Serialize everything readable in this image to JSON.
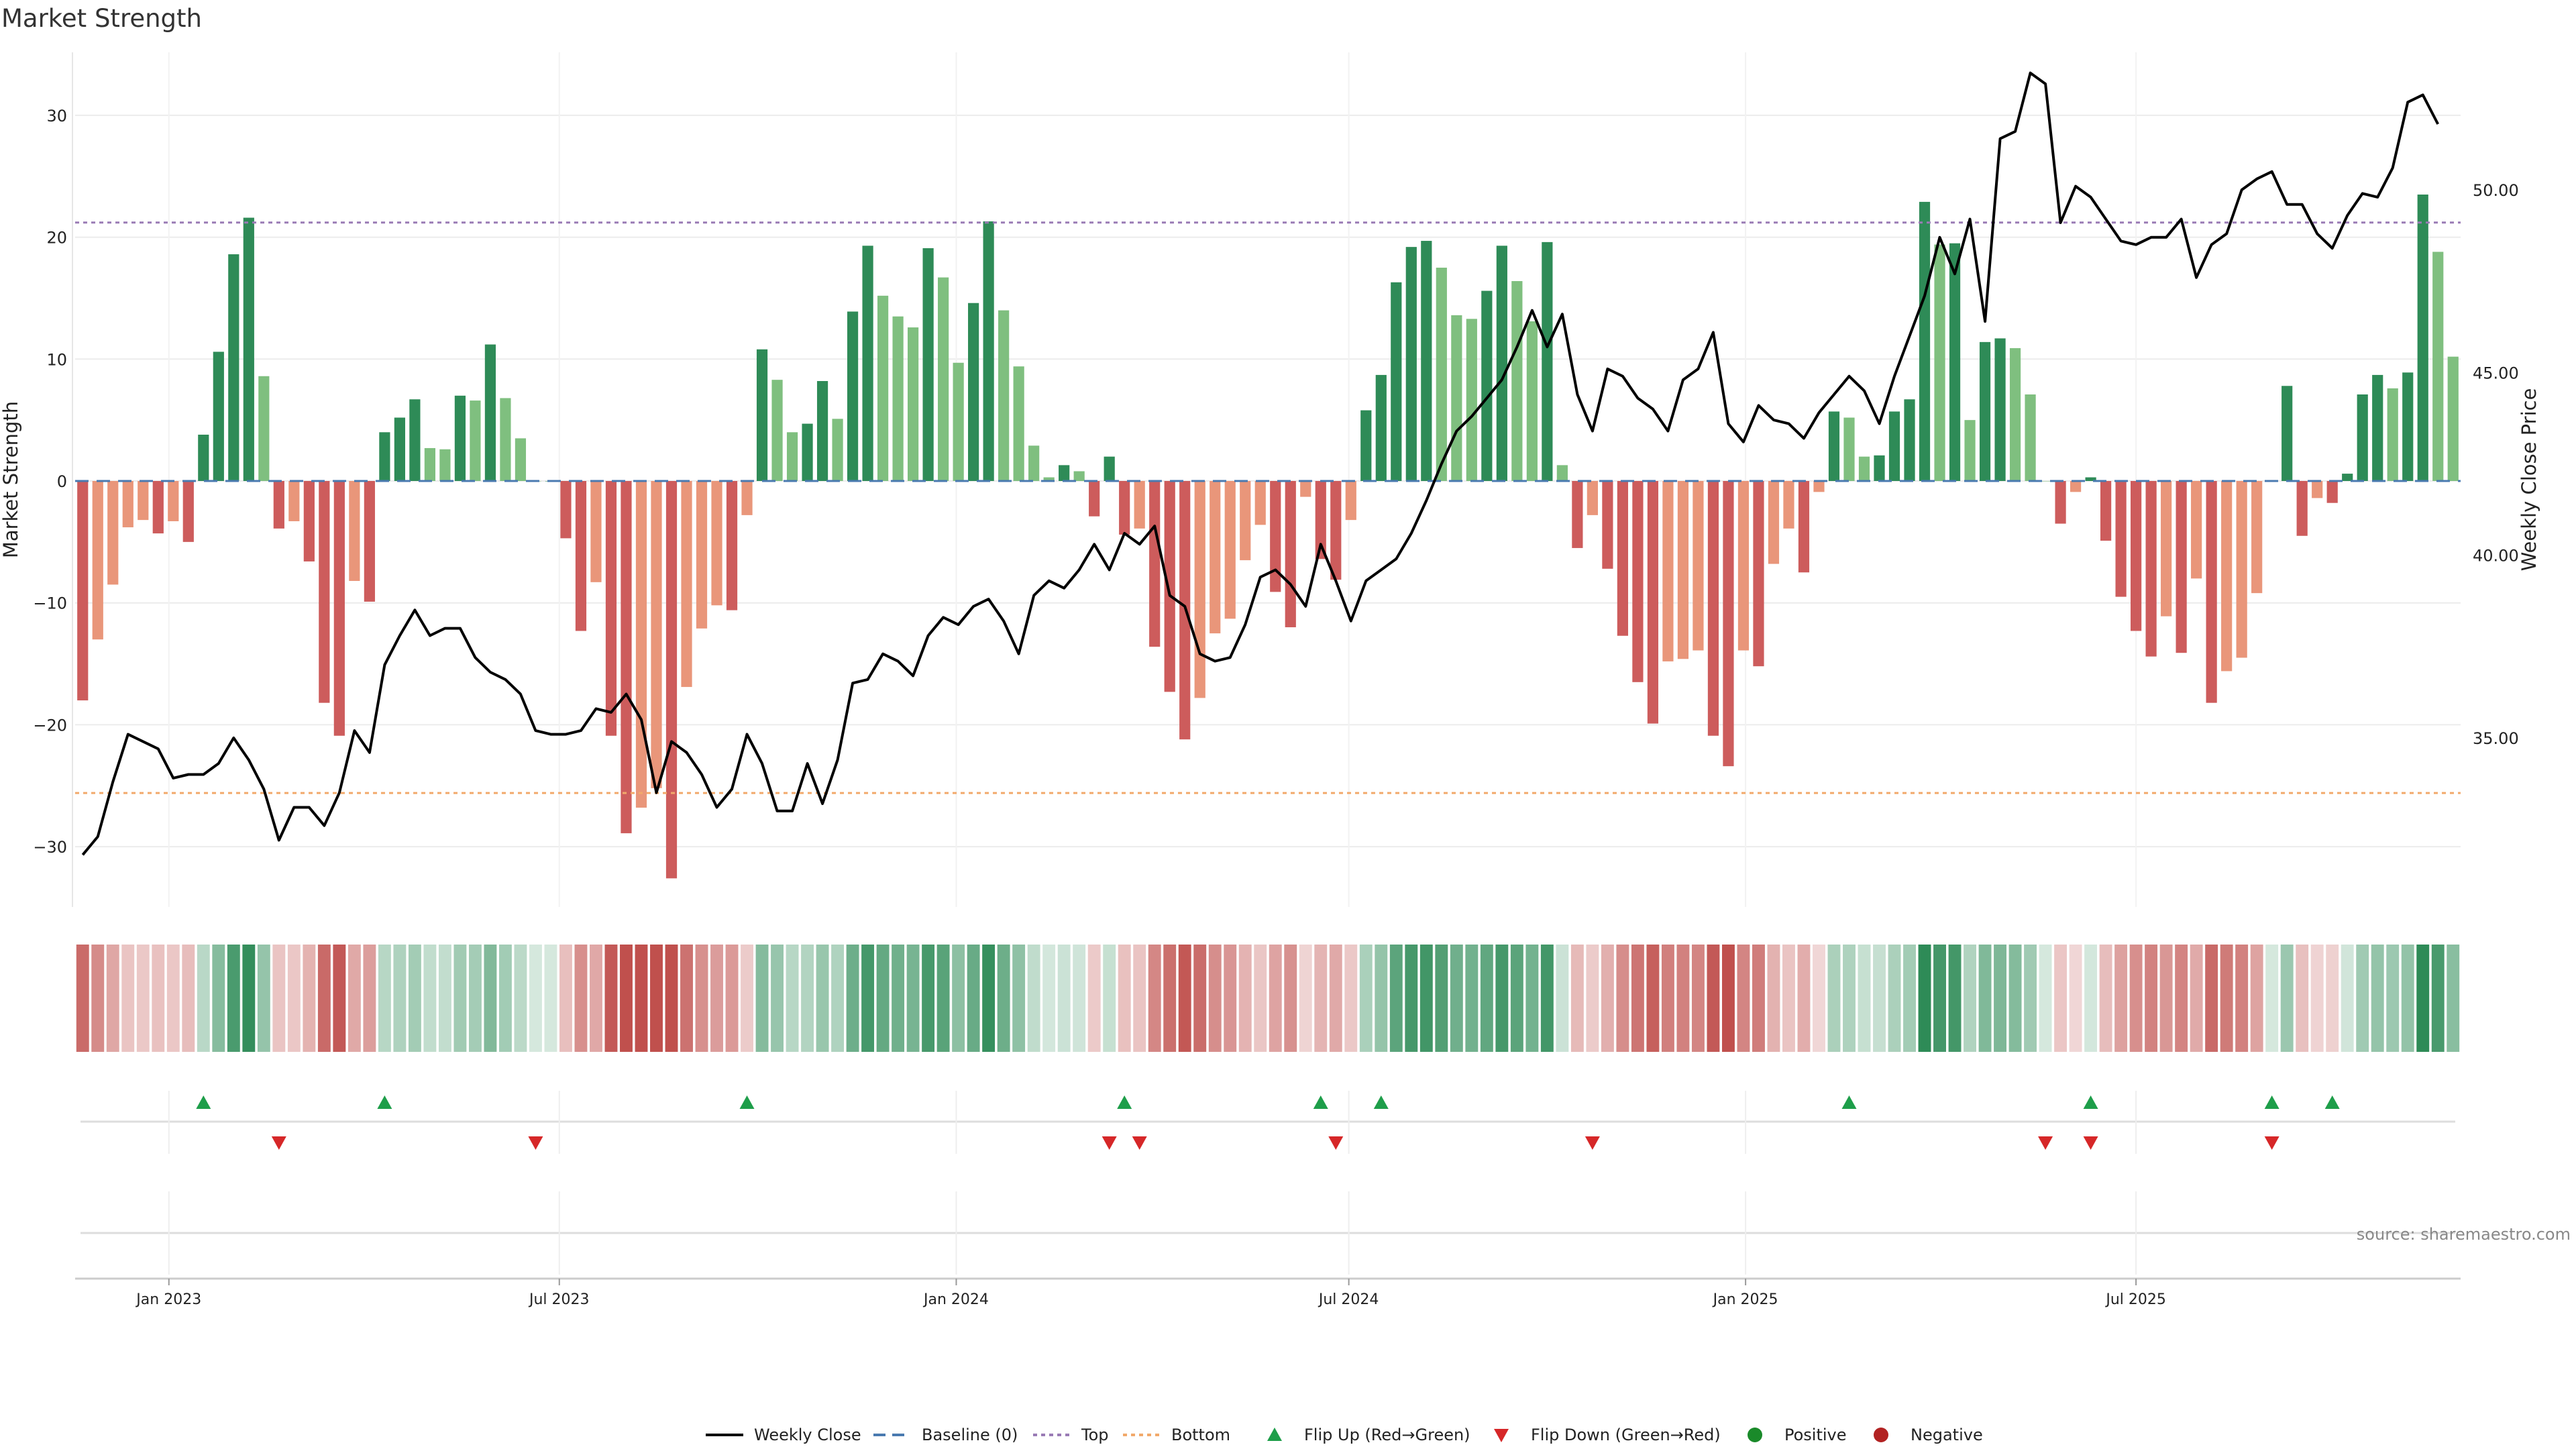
{
  "chart_data": {
    "type": "bar",
    "title": "Market Strength",
    "ylabel_left": "Market Strength",
    "ylabel_right": "Weekly Close Price",
    "ylim_left": [
      -35,
      35
    ],
    "ylim_right": [
      30.5,
      53.9
    ],
    "yticks_left": [
      30,
      20,
      10,
      0,
      -10,
      -20,
      -30
    ],
    "ytick_labels_left": [
      "30",
      "20",
      "10",
      "0",
      "−10",
      "−20",
      "−30"
    ],
    "yticks_right": [
      50,
      45,
      40,
      35
    ],
    "ytick_labels_right": [
      "50.00",
      "45.00",
      "40.00",
      "35.00"
    ],
    "x_start_date": "2022-11-25",
    "x_end_date": "2025-11-28",
    "x_tick_labels": [
      "Jan 2023",
      "Jul 2023",
      "Jan 2024",
      "Jul 2024",
      "Jan 2025",
      "Jul 2025"
    ],
    "x_tick_weeks": [
      5.71,
      31.57,
      57.86,
      83.86,
      110.14,
      136.0
    ],
    "top_level": 21.2,
    "bottom_level": -25.6,
    "baseline": 0,
    "grid": true,
    "legend_position": "bottom-center",
    "colors": {
      "pos_strong": "#2e8b57",
      "pos_weak": "#7fbf7f",
      "neg_strong": "#cd5c5c",
      "neg_weak": "#e9967a",
      "price_line": "#000000",
      "baseline": "#4a7ab0",
      "top": "#9a7bb5",
      "bottom": "#f2a96b",
      "flip_up": "#1e9e4a",
      "flip_down": "#d62728",
      "positive": "#1a8a2a",
      "negative": "#b22222"
    },
    "strength": [
      -18,
      -13,
      -8.5,
      -3.8,
      -3.2,
      -4.3,
      -3.3,
      -5,
      3.8,
      10.6,
      18.6,
      21.6,
      8.6,
      -3.9,
      -3.3,
      -6.6,
      -18.2,
      -20.9,
      -8.2,
      -9.9,
      4,
      5.2,
      6.7,
      2.7,
      2.6,
      7,
      6.6,
      11.2,
      6.8,
      3.5,
      0,
      0,
      -4.7,
      -12.3,
      -8.3,
      -20.9,
      -28.9,
      -26.8,
      -25.2,
      -32.6,
      -16.9,
      -12.1,
      -10.2,
      -10.6,
      -2.8,
      10.8,
      8.3,
      4,
      4.7,
      8.2,
      5.1,
      13.9,
      19.3,
      15.2,
      13.5,
      12.6,
      19.1,
      16.7,
      9.7,
      14.6,
      21.3,
      14,
      9.4,
      2.9,
      0.3,
      1.3,
      0.8,
      -2.9,
      2,
      -4.4,
      -3.9,
      -13.6,
      -17.3,
      -21.2,
      -17.8,
      -12.5,
      -11.3,
      -6.5,
      -3.6,
      -9.1,
      -12,
      -1.3,
      -6.4,
      -8.1,
      -3.2,
      5.8,
      8.7,
      16.3,
      19.2,
      19.7,
      17.5,
      13.6,
      13.3,
      15.6,
      19.3,
      16.4,
      13.1,
      19.6,
      1.3,
      -5.5,
      -2.8,
      -7.2,
      -12.7,
      -16.5,
      -19.9,
      -14.8,
      -14.6,
      -13.9,
      -20.9,
      -23.4,
      -13.9,
      -15.2,
      -6.8,
      -3.9,
      -7.5,
      -0.9,
      5.7,
      5.2,
      2,
      2.1,
      5.7,
      6.7,
      22.9,
      19.4,
      19.5,
      5,
      11.4,
      11.7,
      10.9,
      7.1,
      0,
      -3.5,
      -0.9,
      0.3,
      -4.9,
      -9.5,
      -12.3,
      -14.4,
      -11.1,
      -14.1,
      -8,
      -18.2,
      -15.6,
      -14.5,
      -9.2,
      0,
      7.8,
      -4.5,
      -1.4,
      -1.8,
      0.6,
      7.1,
      8.7,
      7.6,
      8.9,
      23.5,
      18.8,
      10.2
    ],
    "price": [
      31.8,
      32.3,
      33.8,
      35.1,
      34.9,
      34.7,
      33.9,
      34,
      34,
      34.3,
      35,
      34.4,
      33.6,
      32.2,
      33.1,
      33.1,
      32.6,
      33.5,
      35.2,
      34.6,
      37,
      37.8,
      38.5,
      37.8,
      38,
      38,
      37.2,
      36.8,
      36.6,
      36.2,
      35.2,
      35.1,
      35.1,
      35.2,
      35.8,
      35.7,
      36.2,
      35.5,
      33.5,
      34.9,
      34.6,
      34,
      33.1,
      33.6,
      35.1,
      34.3,
      33,
      33,
      34.3,
      33.2,
      34.4,
      36.5,
      36.6,
      37.3,
      37.1,
      36.7,
      37.8,
      38.3,
      38.1,
      38.6,
      38.8,
      38.2,
      37.3,
      38.9,
      39.3,
      39.1,
      39.6,
      40.3,
      39.6,
      40.6,
      40.3,
      40.8,
      38.9,
      38.6,
      37.3,
      37.1,
      37.2,
      38.1,
      39.4,
      39.6,
      39.2,
      38.6,
      40.3,
      39.3,
      38.2,
      39.3,
      39.6,
      39.9,
      40.6,
      41.5,
      42.5,
      43.4,
      43.8,
      44.3,
      44.8,
      45.7,
      46.7,
      45.7,
      46.6,
      44.4,
      43.4,
      45.1,
      44.9,
      44.3,
      44,
      43.4,
      44.8,
      45.1,
      46.1,
      43.6,
      43.1,
      44.1,
      43.7,
      43.6,
      43.2,
      43.9,
      44.4,
      44.9,
      44.5,
      43.6,
      44.9,
      46,
      47.1,
      48.7,
      47.7,
      49.2,
      46.4,
      51.4,
      51.6,
      53.2,
      52.9,
      49.1,
      50.1,
      49.8,
      49.2,
      48.6,
      48.5,
      48.7,
      48.7,
      49.2,
      47.6,
      48.5,
      48.8,
      50,
      50.3,
      50.5,
      49.6,
      49.6,
      48.8,
      48.4,
      49.3,
      49.9,
      49.8,
      50.6,
      52.4,
      52.6,
      51.8
    ],
    "strength_bar_band": "shaded by strength",
    "flip_up_weeks": [
      8,
      20,
      44,
      69,
      82,
      86,
      117,
      133,
      145,
      149
    ],
    "flip_down_weeks": [
      13,
      30,
      68,
      70,
      83,
      100,
      130,
      133,
      145
    ],
    "legend": [
      "Weekly Close",
      "Baseline (0)",
      "Top",
      "Bottom",
      "Flip Up (Red→Green)",
      "Flip Down (Green→Red)",
      "Positive",
      "Negative"
    ],
    "source": "source: sharemaestro.com"
  }
}
